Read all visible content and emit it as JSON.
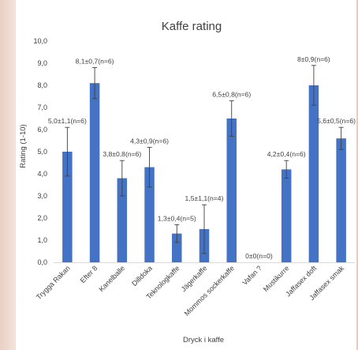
{
  "chart_data": {
    "type": "bar",
    "title": "Kaffe rating",
    "xlabel": "Dryck i kaffe",
    "ylabel": "Rating (1-10)",
    "ylim": [
      0,
      10
    ],
    "yticks": [
      "0,0",
      "1,0",
      "2,0",
      "3,0",
      "4,0",
      "5,0",
      "6,0",
      "7,0",
      "8,0",
      "9,0",
      "10,0"
    ],
    "grid": false,
    "legend": "none",
    "bar_color": "#4472c4",
    "categories": [
      "Trygga Rakan",
      "Efter 8",
      "Kanelballe",
      "Dilldoka",
      "Teknologkaffe",
      "Jägerkaffe",
      "Mommos sockerkaffe",
      "Vafan ?",
      "Mustikurre",
      "Jaffasex doft",
      "Jaffasex smak"
    ],
    "values": [
      5.0,
      8.1,
      3.8,
      4.3,
      1.3,
      1.5,
      6.5,
      0,
      4.2,
      8.0,
      5.6
    ],
    "errors": [
      1.1,
      0.7,
      0.8,
      0.9,
      0.4,
      1.1,
      0.8,
      0,
      0.4,
      0.9,
      0.5
    ],
    "data_labels": [
      "5,0±1,1(n=6)",
      "8,1±0,7(n=6)",
      "3,8±0,8(n=6)",
      "4,3±0,9(n=6)",
      "1,3±0,4(n=5)",
      "1,5±1,1(n=4)",
      "6,5±0,8(n=6)",
      "0±0(n=0)",
      "4,2±0,4(n=6)",
      "8±0,9(n=6)",
      "5,6±0,5(n=6)"
    ]
  }
}
